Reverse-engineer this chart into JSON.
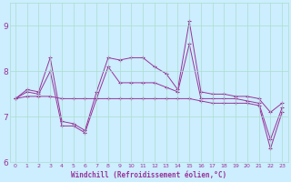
{
  "xlabel": "Windchill (Refroidissement éolien,°C)",
  "hours": [
    0,
    1,
    2,
    3,
    4,
    5,
    6,
    7,
    8,
    9,
    10,
    11,
    12,
    13,
    14,
    15,
    16,
    17,
    18,
    19,
    20,
    21,
    22,
    23
  ],
  "series": [
    [
      7.4,
      7.6,
      7.55,
      8.3,
      6.9,
      6.85,
      6.7,
      7.55,
      8.3,
      8.25,
      8.3,
      8.3,
      8.1,
      7.95,
      7.6,
      9.1,
      7.55,
      7.5,
      7.5,
      7.45,
      7.45,
      7.4,
      7.1,
      7.3
    ],
    [
      7.4,
      7.55,
      7.5,
      8.0,
      6.8,
      6.8,
      6.65,
      7.4,
      8.1,
      7.75,
      7.75,
      7.75,
      7.75,
      7.65,
      7.55,
      8.6,
      7.4,
      7.4,
      7.4,
      7.4,
      7.35,
      7.3,
      6.5,
      7.2
    ],
    [
      7.4,
      7.45,
      7.45,
      7.45,
      7.4,
      7.4,
      7.4,
      7.4,
      7.4,
      7.4,
      7.4,
      7.4,
      7.4,
      7.4,
      7.4,
      7.4,
      7.35,
      7.3,
      7.3,
      7.3,
      7.3,
      7.25,
      6.3,
      7.1
    ]
  ],
  "line_color": "#993399",
  "bg_color": "#cceeff",
  "grid_color": "#aaddcc",
  "ylim": [
    6.0,
    9.5
  ],
  "yticks": [
    6,
    7,
    8,
    9
  ],
  "xlim": [
    -0.5,
    23.5
  ],
  "figsize": [
    3.2,
    2.0
  ],
  "dpi": 100
}
